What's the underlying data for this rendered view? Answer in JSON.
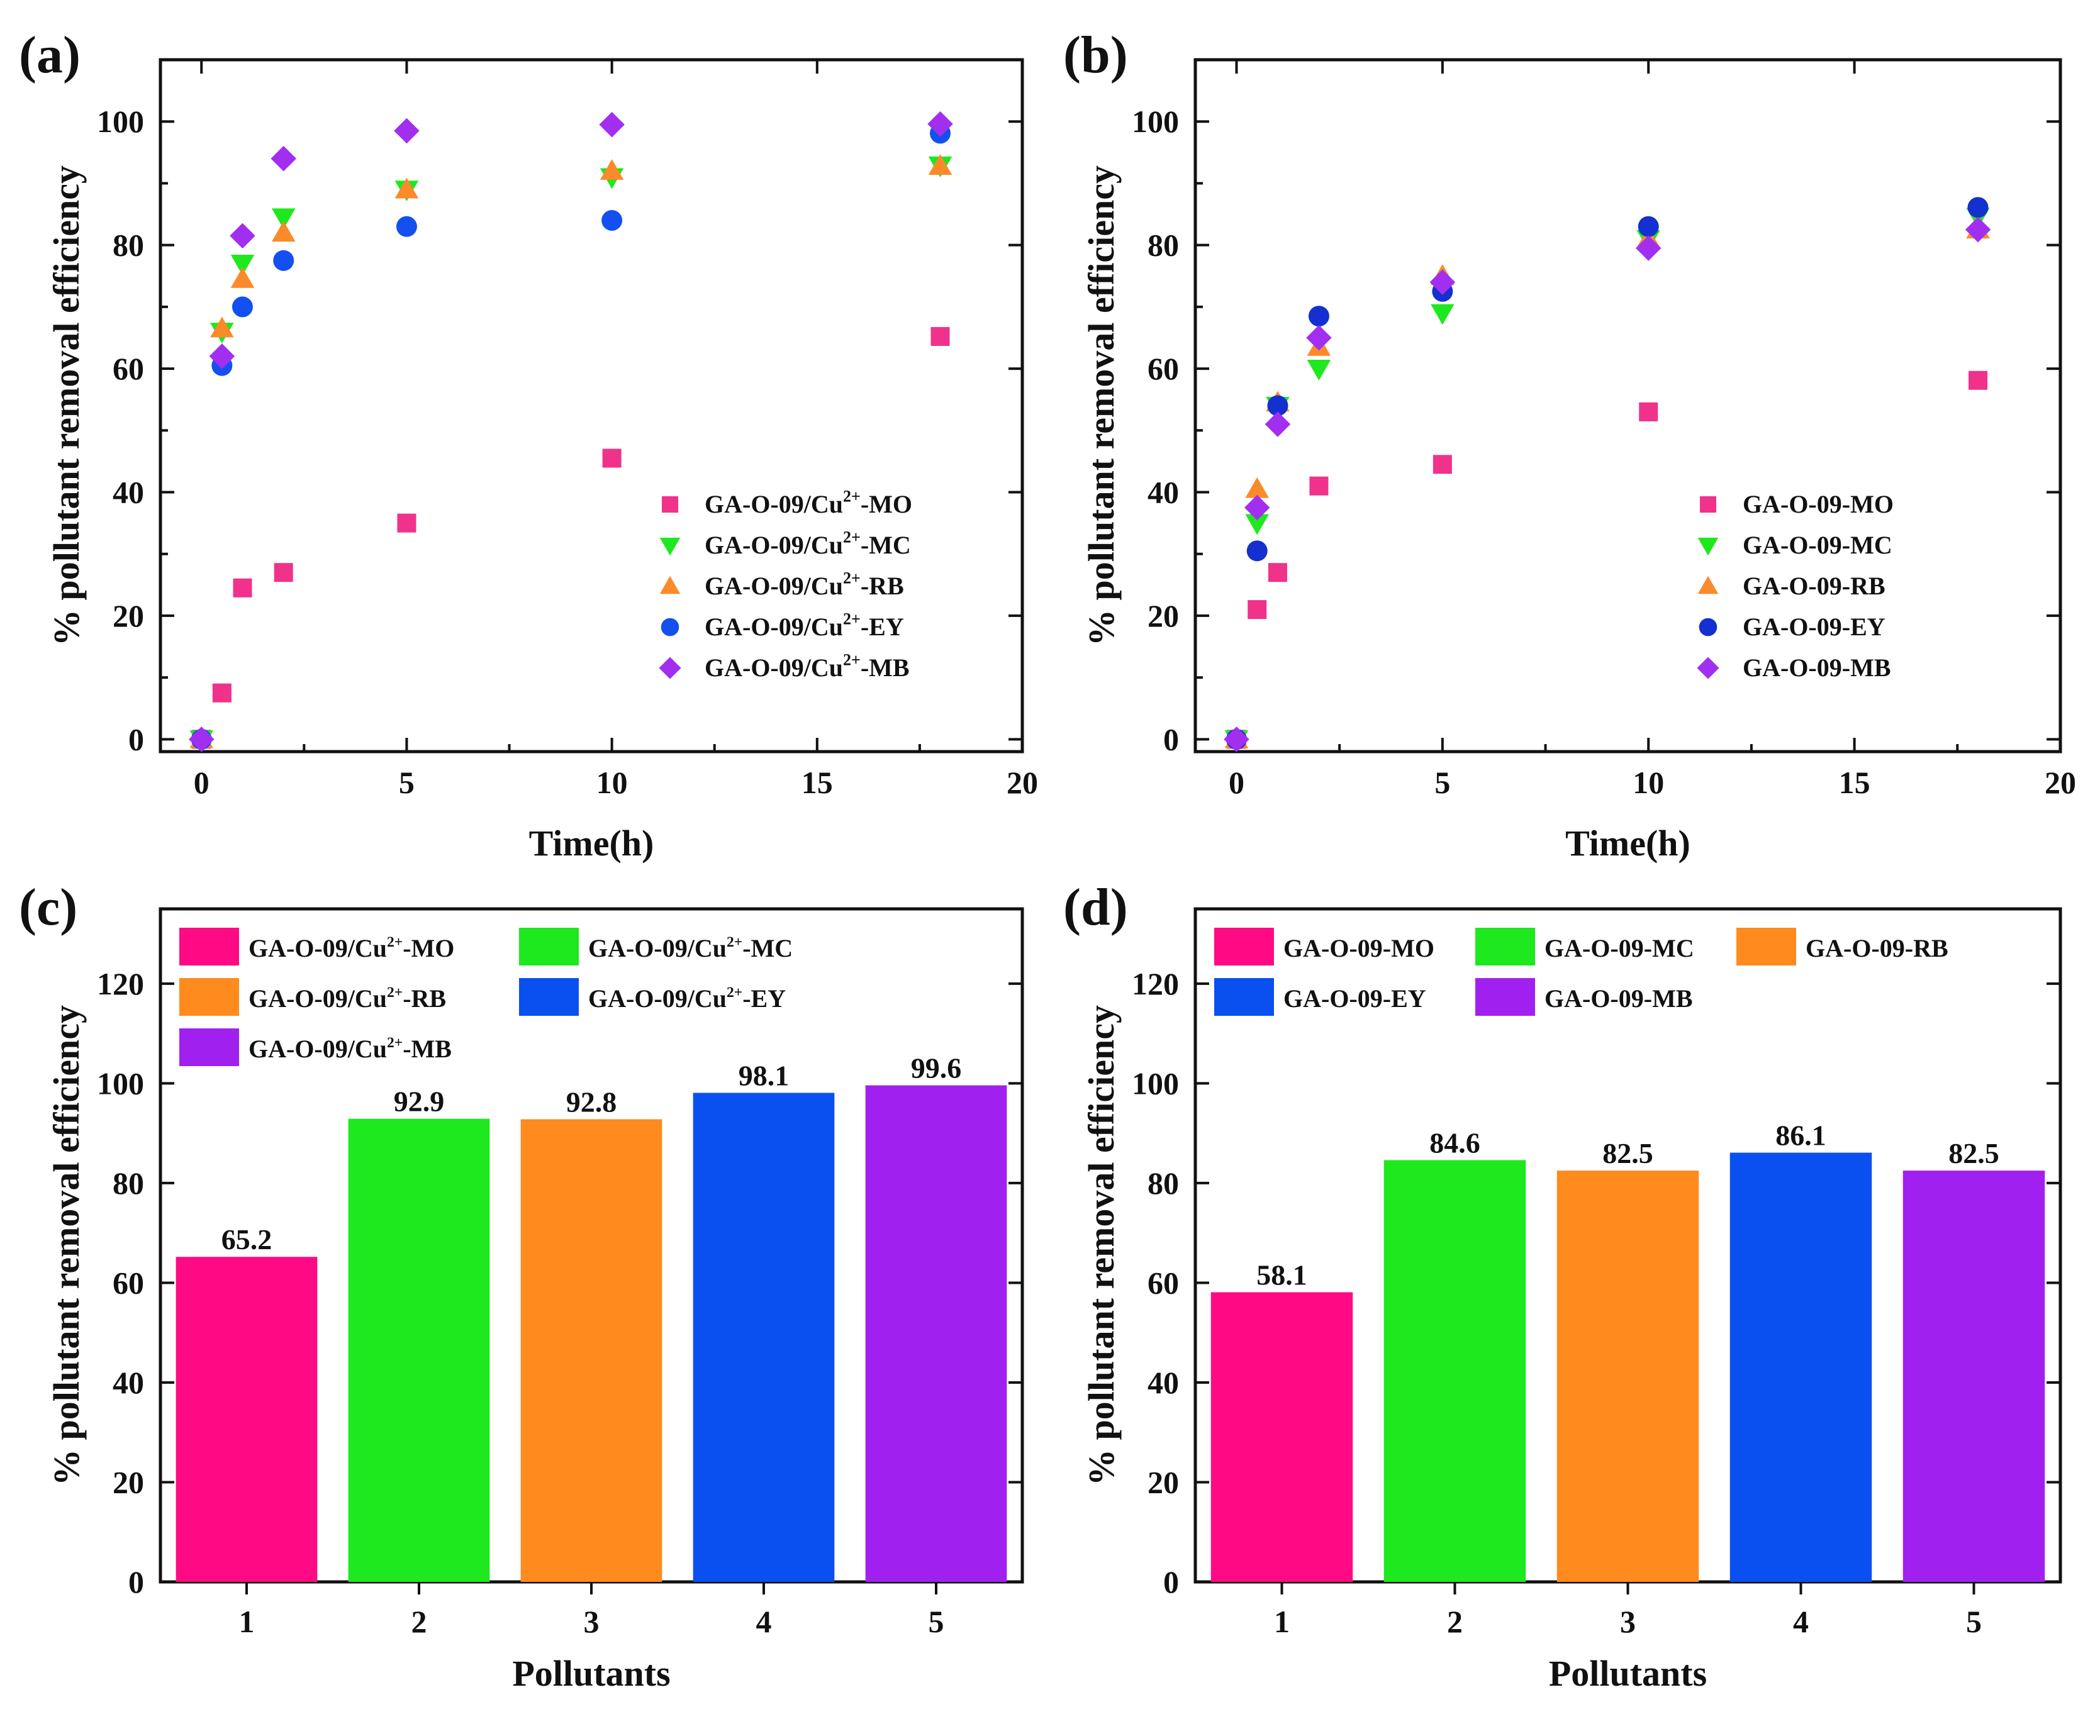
{
  "chart_data": [
    {
      "type": "scatter",
      "panel_label": "(a)",
      "xlabel": "Time(h)",
      "ylabel": "% pollutant removal efficiency",
      "xlim": [
        -1,
        20
      ],
      "ylim": [
        -2,
        110
      ],
      "xticks": [
        0,
        5,
        10,
        15,
        20
      ],
      "yticks": [
        0,
        20,
        40,
        60,
        80,
        100
      ],
      "legend_position": "bottom-right",
      "series": [
        {
          "name": "GA-O-09/Cu²⁺-MO",
          "marker": "square",
          "color": "#f0328a",
          "x": [
            0,
            0.5,
            1,
            2,
            5,
            10,
            18
          ],
          "y": [
            0,
            7.5,
            24.5,
            27,
            35,
            45.5,
            65.2
          ]
        },
        {
          "name": "GA-O-09/Cu²⁺-MC",
          "marker": "triangle-down",
          "color": "#1ee81e",
          "x": [
            0,
            0.5,
            1,
            2,
            5,
            10,
            18
          ],
          "y": [
            0,
            66,
            77,
            84.5,
            89,
            91,
            92.9
          ]
        },
        {
          "name": "GA-O-09/Cu²⁺-RB",
          "marker": "triangle-up",
          "color": "#fb8a2a",
          "x": [
            0,
            0.5,
            1,
            2,
            5,
            10,
            18
          ],
          "y": [
            0,
            66.5,
            74.5,
            82,
            89,
            92,
            92.8
          ]
        },
        {
          "name": "GA-O-09/Cu²⁺-EY",
          "marker": "circle",
          "color": "#1450f0",
          "x": [
            0,
            0.5,
            1,
            2,
            5,
            10,
            18
          ],
          "y": [
            0,
            60.5,
            70,
            77.5,
            83,
            84,
            98.1
          ]
        },
        {
          "name": "GA-O-09/Cu²⁺-MB",
          "marker": "diamond",
          "color": "#a22ff0",
          "x": [
            0,
            0.5,
            1,
            2,
            5,
            10,
            18
          ],
          "y": [
            0,
            62,
            81.5,
            94,
            98.5,
            99.5,
            99.6
          ]
        }
      ]
    },
    {
      "type": "scatter",
      "panel_label": "(b)",
      "xlabel": "Time(h)",
      "ylabel": "% pollutant removal efficiency",
      "xlim": [
        -1,
        20
      ],
      "ylim": [
        -2,
        110
      ],
      "xticks": [
        0,
        5,
        10,
        15,
        20
      ],
      "yticks": [
        0,
        20,
        40,
        60,
        80,
        100
      ],
      "legend_position": "bottom-right",
      "series": [
        {
          "name": "GA-O-09-MO",
          "marker": "square",
          "color": "#f0328a",
          "x": [
            0,
            0.5,
            1,
            2,
            5,
            10,
            18
          ],
          "y": [
            0,
            21,
            27,
            41,
            44.5,
            53,
            58.1
          ]
        },
        {
          "name": "GA-O-09-MC",
          "marker": "triangle-down",
          "color": "#1ee81e",
          "x": [
            0,
            0.5,
            1,
            2,
            5,
            10,
            18
          ],
          "y": [
            0,
            35,
            54,
            60,
            69,
            81,
            84.6
          ]
        },
        {
          "name": "GA-O-09-RB",
          "marker": "triangle-up",
          "color": "#fb8a2a",
          "x": [
            0,
            0.5,
            1,
            2,
            5,
            10,
            18
          ],
          "y": [
            0,
            40.5,
            54.5,
            63.5,
            75,
            81,
            82.5
          ]
        },
        {
          "name": "GA-O-09-EY",
          "marker": "circle",
          "color": "#1430d0",
          "x": [
            0,
            0.5,
            1,
            2,
            5,
            10,
            18
          ],
          "y": [
            0,
            30.5,
            54,
            68.5,
            72.5,
            83,
            86.1
          ]
        },
        {
          "name": "GA-O-09-MB",
          "marker": "diamond",
          "color": "#a22ff0",
          "x": [
            0,
            0.5,
            1,
            2,
            5,
            10,
            18
          ],
          "y": [
            0,
            37.5,
            51,
            65,
            74,
            79.5,
            82.5
          ]
        }
      ]
    },
    {
      "type": "bar",
      "panel_label": "(c)",
      "xlabel": "Pollutants",
      "ylabel": "% pollutant removal efficiency",
      "ylim": [
        0,
        135
      ],
      "yticks": [
        0,
        20,
        40,
        60,
        80,
        100,
        120
      ],
      "categories": [
        "1",
        "2",
        "3",
        "4",
        "5"
      ],
      "values": [
        65.2,
        92.9,
        92.8,
        98.1,
        99.6
      ],
      "value_labels": [
        "65.2",
        "92.9",
        "92.8",
        "98.1",
        "99.6"
      ],
      "colors": [
        "#ff0a84",
        "#1ee81e",
        "#ff8a1e",
        "#0a50f0",
        "#a020f0"
      ],
      "legend_position": "top-left",
      "legend": [
        "GA-O-09/Cu²⁺-MO",
        "GA-O-09/Cu²⁺-MC",
        "GA-O-09/Cu²⁺-RB",
        "GA-O-09/Cu²⁺-EY",
        "GA-O-09/Cu²⁺-MB"
      ]
    },
    {
      "type": "bar",
      "panel_label": "(d)",
      "xlabel": "Pollutants",
      "ylabel": "% pollutant removal efficiency",
      "ylim": [
        0,
        135
      ],
      "yticks": [
        0,
        20,
        40,
        60,
        80,
        100,
        120
      ],
      "categories": [
        "1",
        "2",
        "3",
        "4",
        "5"
      ],
      "values": [
        58.1,
        84.6,
        82.5,
        86.1,
        82.5
      ],
      "value_labels": [
        "58.1",
        "84.6",
        "82.5",
        "86.1",
        "82.5"
      ],
      "colors": [
        "#ff0a84",
        "#1ee81e",
        "#ff8a1e",
        "#0a50f0",
        "#a020f0"
      ],
      "legend_position": "top-left",
      "legend": [
        "GA-O-09-MO",
        "GA-O-09-MC",
        "GA-O-09-RB",
        "GA-O-09-EY",
        "GA-O-09-MB"
      ]
    }
  ]
}
